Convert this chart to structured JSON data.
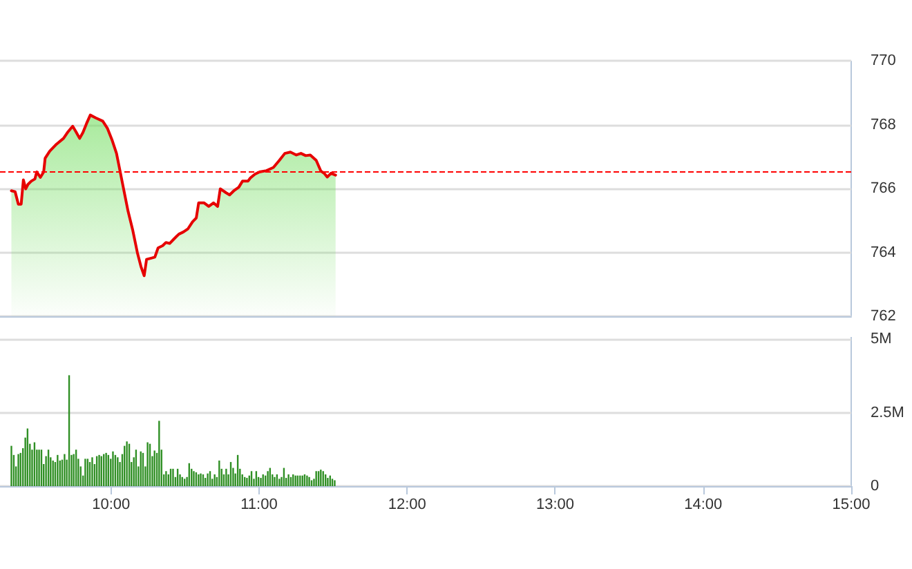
{
  "chart_data": [
    {
      "type": "area",
      "xlim": [
        9.25,
        15
      ],
      "ylim": [
        762,
        770
      ],
      "yticks": [
        762,
        764,
        766,
        768,
        770
      ],
      "tick_labels": "y",
      "grid": "y",
      "marker": "none",
      "ref_lines": [
        {
          "axis": "y",
          "value": 766.54,
          "color": "#ff0000",
          "line_style": "dashed"
        }
      ],
      "series": [
        {
          "color": "#e60000",
          "x": [
            9.327,
            9.352,
            9.374,
            9.393,
            9.408,
            9.424,
            9.439,
            9.461,
            9.486,
            9.498,
            9.523,
            9.545,
            9.555,
            9.586,
            9.632,
            9.679,
            9.71,
            9.741,
            9.763,
            9.788,
            9.81,
            9.835,
            9.86,
            9.897,
            9.944,
            9.975,
            10.006,
            10.037,
            10.059,
            10.084,
            10.115,
            10.146,
            10.178,
            10.202,
            10.224,
            10.24,
            10.271,
            10.296,
            10.318,
            10.349,
            10.371,
            10.396,
            10.421,
            10.458,
            10.489,
            10.52,
            10.551,
            10.576,
            10.592,
            10.629,
            10.66,
            10.692,
            10.72,
            10.738,
            10.776,
            10.801,
            10.832,
            10.863,
            10.888,
            10.925,
            10.941,
            10.972,
            11.003,
            11.05,
            11.097,
            11.137,
            11.174,
            11.212,
            11.252,
            11.283,
            11.315,
            11.346,
            11.386,
            11.417,
            11.439,
            11.461,
            11.486,
            11.517
          ],
          "values": [
            765.93,
            765.9,
            765.51,
            765.51,
            766.27,
            765.99,
            766.13,
            766.23,
            766.3,
            766.52,
            766.35,
            766.52,
            766.95,
            767.17,
            767.39,
            767.57,
            767.78,
            767.95,
            767.78,
            767.57,
            767.75,
            768.04,
            768.3,
            768.21,
            768.11,
            767.89,
            767.53,
            767.1,
            766.59,
            766.01,
            765.29,
            764.71,
            763.99,
            763.56,
            763.27,
            763.78,
            763.82,
            763.85,
            764.14,
            764.21,
            764.31,
            764.28,
            764.4,
            764.57,
            764.64,
            764.74,
            764.96,
            765.08,
            765.55,
            765.55,
            765.44,
            765.55,
            765.44,
            765.99,
            765.87,
            765.8,
            765.94,
            766.04,
            766.23,
            766.23,
            766.33,
            766.45,
            766.52,
            766.56,
            766.66,
            766.88,
            767.1,
            767.14,
            767.05,
            767.1,
            767.03,
            767.05,
            766.88,
            766.55,
            766.48,
            766.36,
            766.48,
            766.42
          ]
        }
      ]
    },
    {
      "type": "bar",
      "xlim": [
        9.25,
        15
      ],
      "xticks": [
        {
          "value": 10,
          "label": "10:00"
        },
        {
          "value": 11,
          "label": "11:00"
        },
        {
          "value": 12,
          "label": "12:00"
        },
        {
          "value": 13,
          "label": "13:00"
        },
        {
          "value": 14,
          "label": "14:00"
        },
        {
          "value": 15,
          "label": "15:00"
        }
      ],
      "ylim": [
        0,
        5
      ],
      "yticks": [
        0,
        {
          "value": 2.5,
          "label": "2.5M"
        },
        {
          "value": 5,
          "label": "5M"
        }
      ],
      "grid": "y",
      "series": [
        {
          "color": "#2f8f24",
          "x": [
            9.327,
            9.343,
            9.358,
            9.374,
            9.389,
            9.405,
            9.421,
            9.436,
            9.452,
            9.467,
            9.483,
            9.499,
            9.514,
            9.53,
            9.545,
            9.561,
            9.577,
            9.592,
            9.608,
            9.623,
            9.639,
            9.655,
            9.67,
            9.686,
            9.701,
            9.717,
            9.733,
            9.748,
            9.764,
            9.779,
            9.795,
            9.811,
            9.826,
            9.842,
            9.857,
            9.873,
            9.889,
            9.904,
            9.92,
            9.935,
            9.951,
            9.967,
            9.982,
            9.998,
            10.013,
            10.029,
            10.045,
            10.06,
            10.076,
            10.091,
            10.107,
            10.123,
            10.138,
            10.154,
            10.169,
            10.185,
            10.201,
            10.216,
            10.232,
            10.247,
            10.263,
            10.279,
            10.294,
            10.31,
            10.325,
            10.341,
            10.357,
            10.372,
            10.388,
            10.403,
            10.419,
            10.435,
            10.45,
            10.466,
            10.481,
            10.497,
            10.513,
            10.528,
            10.544,
            10.559,
            10.575,
            10.591,
            10.606,
            10.622,
            10.637,
            10.653,
            10.669,
            10.684,
            10.7,
            10.715,
            10.731,
            10.747,
            10.762,
            10.778,
            10.793,
            10.809,
            10.825,
            10.84,
            10.856,
            10.871,
            10.887,
            10.903,
            10.918,
            10.934,
            10.949,
            10.965,
            10.981,
            10.996,
            11.012,
            11.027,
            11.043,
            11.059,
            11.074,
            11.09,
            11.105,
            11.121,
            11.137,
            11.152,
            11.168,
            11.183,
            11.199,
            11.215,
            11.23,
            11.246,
            11.261,
            11.277,
            11.293,
            11.308,
            11.324,
            11.339,
            11.355,
            11.371,
            11.386,
            11.402,
            11.417,
            11.433,
            11.449,
            11.464,
            11.48,
            11.495,
            11.511
          ],
          "values": [
            1.37,
            1.06,
            0.67,
            1.09,
            1.13,
            1.29,
            1.65,
            1.96,
            1.44,
            1.24,
            1.49,
            1.24,
            1.24,
            1.24,
            0.75,
            1.02,
            1.24,
            0.98,
            0.87,
            0.82,
            1.06,
            0.87,
            0.9,
            1.09,
            0.9,
            3.77,
            1.06,
            1.09,
            1.24,
            0.93,
            0.67,
            0.36,
            0.93,
            0.93,
            0.82,
            0.98,
            0.75,
            1.02,
            1.06,
            1.02,
            1.09,
            1.13,
            1.06,
            0.93,
            1.18,
            1.06,
            0.98,
            0.82,
            1.09,
            1.37,
            1.52,
            1.44,
            0.82,
            0.98,
            1.24,
            0.67,
            1.18,
            1.13,
            0.67,
            1.49,
            1.44,
            1.02,
            1.21,
            1.13,
            2.22,
            1.24,
            0.4,
            0.51,
            0.4,
            0.59,
            0.59,
            0.31,
            0.59,
            0.4,
            0.31,
            0.25,
            0.31,
            0.78,
            0.59,
            0.51,
            0.47,
            0.4,
            0.43,
            0.4,
            0.28,
            0.43,
            0.51,
            0.25,
            0.4,
            0.31,
            0.87,
            0.59,
            0.4,
            0.59,
            0.4,
            0.82,
            0.62,
            0.43,
            1.06,
            0.59,
            0.4,
            0.31,
            0.28,
            0.36,
            0.51,
            0.25,
            0.51,
            0.31,
            0.28,
            0.4,
            0.36,
            0.51,
            0.62,
            0.4,
            0.31,
            0.4,
            0.25,
            0.31,
            0.62,
            0.28,
            0.4,
            0.31,
            0.4,
            0.36,
            0.36,
            0.36,
            0.36,
            0.4,
            0.36,
            0.31,
            0.2,
            0.25,
            0.51,
            0.51,
            0.56,
            0.51,
            0.4,
            0.28,
            0.36,
            0.25,
            0.2
          ]
        }
      ]
    }
  ]
}
